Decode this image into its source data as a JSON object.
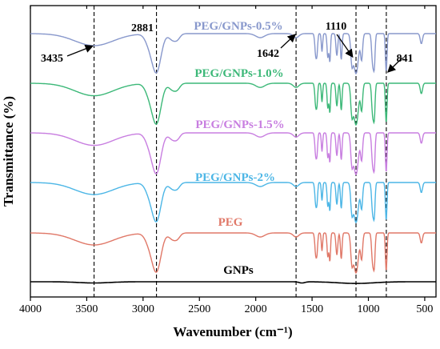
{
  "chart_data": {
    "type": "line",
    "xlabel": "Wavenumber (cm⁻¹)",
    "ylabel": "Transmittance (%)",
    "xlim": [
      4000,
      400
    ],
    "x_reversed": true,
    "x_ticks": [
      4000,
      3500,
      3000,
      2500,
      2000,
      1500,
      1000,
      500
    ],
    "y_ticks_shown": false,
    "grid": false,
    "legend": "labels placed above each curve",
    "reference_lines": [
      3435,
      2881,
      1642,
      1110,
      841
    ],
    "peak_annotations": [
      {
        "label": "3435",
        "x": 3435
      },
      {
        "label": "2881",
        "x": 2881
      },
      {
        "label": "1642",
        "x": 1642
      },
      {
        "label": "1110",
        "x": 1110
      },
      {
        "label": "841",
        "x": 841
      }
    ],
    "series": [
      {
        "name": "PEG/GNPs-0.5%",
        "color": "#8898cc",
        "profile": "PEG"
      },
      {
        "name": "PEG/GNPs-1.0%",
        "color": "#3cb878",
        "profile": "PEG"
      },
      {
        "name": "PEG/GNPs-1.5%",
        "color": "#c87ee0",
        "profile": "PEG"
      },
      {
        "name": "PEG/GNPs-2%",
        "color": "#4cb6e6",
        "profile": "PEG"
      },
      {
        "name": "PEG",
        "color": "#e07868",
        "profile": "PEG"
      },
      {
        "name": "GNPs",
        "color": "#000000",
        "profile": "GNPs"
      }
    ]
  }
}
